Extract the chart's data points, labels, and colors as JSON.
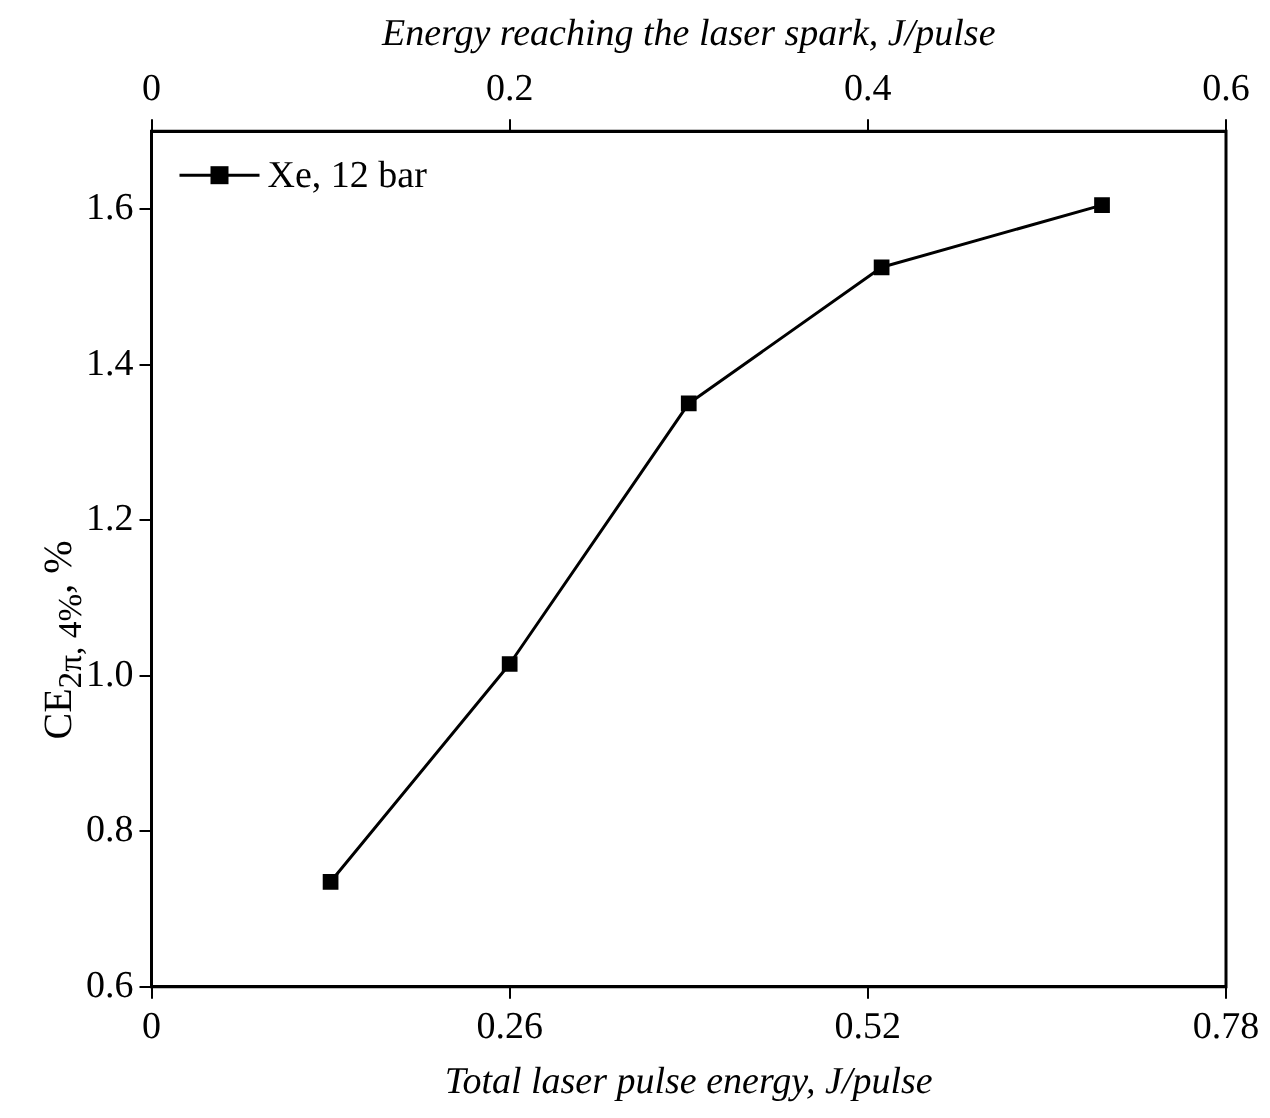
{
  "chart_data": {
    "type": "line",
    "xlabel": "Total laser pulse energy, J/pulse",
    "x2label": "Energy reaching the laser spark, J/pulse",
    "ylabel": "CE$_{2π, 4%}$, %",
    "x": [
      0.13,
      0.26,
      0.39,
      0.53,
      0.69
    ],
    "series": [
      {
        "name": "Xe, 12 bar",
        "color": "#000000",
        "values": [
          0.735,
          1.015,
          1.35,
          1.525,
          1.605
        ]
      }
    ],
    "xlim": [
      0,
      0.78
    ],
    "xticks": [
      0,
      0.26,
      0.52,
      0.78
    ],
    "x2lim": [
      0,
      0.6
    ],
    "x2ticks": [
      0,
      0.2,
      0.4,
      0.6
    ],
    "ylim": [
      0.6,
      1.7
    ],
    "yticks": [
      0.6,
      0.8,
      {
        "value": 1.0,
        "label": "1.0"
      },
      1.2,
      1.4,
      1.6
    ],
    "marker": "square",
    "line_style": "solid",
    "grid": false,
    "legend": "top left"
  }
}
